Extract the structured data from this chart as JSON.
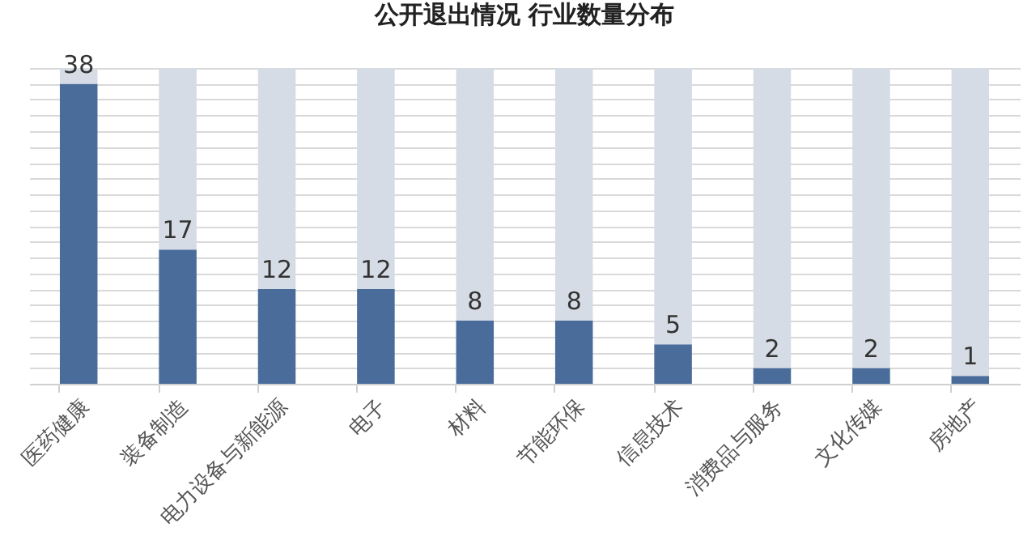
{
  "chart_data": {
    "type": "bar",
    "title": "公开退出情况 行业数量分布",
    "categories": [
      "医药健康",
      "装备制造",
      "电力设备与新能源",
      "电子",
      "材料",
      "节能环保",
      "信息技术",
      "消费品与服务",
      "文化传媒",
      "房地产"
    ],
    "stacked": true,
    "series": [
      {
        "color": "#4a6c9b",
        "values": [
          38,
          17,
          12,
          12,
          8,
          8,
          5,
          2,
          2,
          1
        ],
        "value_labels": [
          "38",
          "17",
          "12",
          "12",
          "8",
          "8",
          "5",
          "2",
          "2",
          "1"
        ]
      },
      {
        "color": "#d6dce5",
        "values": [
          2,
          23,
          28,
          28,
          32,
          32,
          35,
          38,
          38,
          39
        ]
      }
    ],
    "ylim": [
      0,
      40
    ],
    "yticks": [
      {
        "value": 0,
        "label": null
      },
      {
        "value": 2,
        "label": null
      },
      {
        "value": 4,
        "label": null
      },
      {
        "value": 6,
        "label": null
      },
      {
        "value": 8,
        "label": null
      },
      {
        "value": 10,
        "label": null
      },
      {
        "value": 12,
        "label": null
      },
      {
        "value": 14,
        "label": null
      },
      {
        "value": 16,
        "label": null
      },
      {
        "value": 18,
        "label": null
      },
      {
        "value": 20,
        "label": null
      },
      {
        "value": 22,
        "label": null
      },
      {
        "value": 24,
        "label": null
      },
      {
        "value": 26,
        "label": null
      },
      {
        "value": 28,
        "label": null
      },
      {
        "value": 30,
        "label": null
      },
      {
        "value": 32,
        "label": null
      },
      {
        "value": 34,
        "label": null
      },
      {
        "value": 36,
        "label": null
      },
      {
        "value": 38,
        "label": null
      },
      {
        "value": 40,
        "label": null
      }
    ],
    "grid": "y",
    "tick_labels": "x"
  }
}
